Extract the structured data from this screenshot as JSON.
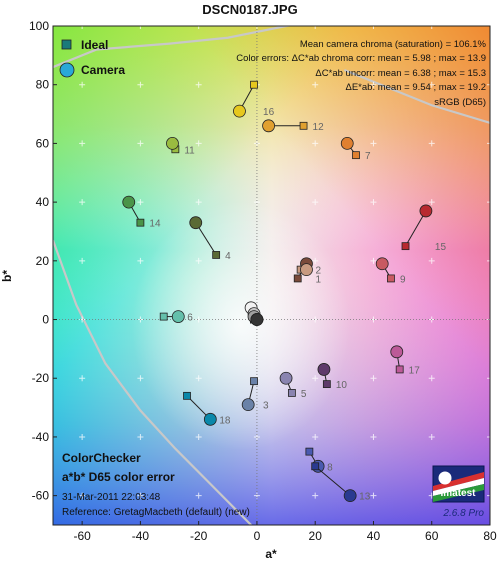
{
  "title": "DSCN0187.JPG",
  "chart_data": {
    "type": "scatter",
    "title": "DSCN0187.JPG",
    "xlabel": "a*",
    "ylabel": "b*",
    "xlim": [
      -70,
      80
    ],
    "ylim": [
      -70,
      100
    ],
    "xticks": [
      -60,
      -40,
      -20,
      0,
      20,
      40,
      60,
      80
    ],
    "yticks": [
      -60,
      -40,
      -20,
      0,
      20,
      40,
      60,
      80,
      100
    ],
    "grid": true,
    "legend": {
      "placement": "top-left",
      "ideal": "Ideal",
      "camera": "Camera"
    },
    "stats": [
      "Mean camera chroma (saturation) = 106.1%",
      "Color errors:  ΔC*ab chroma corr:  mean = 5.98 ;  max = 13.9",
      "ΔC*ab uncorr:  mean = 6.38 ;  max = 15.3",
      "ΔE*ab:  mean = 9.54 ;  max = 19.2",
      "sRGB (D65)"
    ],
    "info": [
      "ColorChecker",
      "a*b* D65 color error",
      "31-Mar-2011 22:03:48",
      "Reference: GretagMacbeth (default) (new)"
    ],
    "logo_text": "Imatest",
    "version": "2.6.8  Pro",
    "patches": [
      {
        "label": "1",
        "ideal": [
          14,
          14
        ],
        "camera": [
          17,
          19
        ],
        "color": "#7a4a3a"
      },
      {
        "label": "2",
        "ideal": [
          15,
          17
        ],
        "camera": [
          17,
          17
        ],
        "color": "#c89a80"
      },
      {
        "label": "3",
        "ideal": [
          -1,
          -21
        ],
        "camera": [
          -3,
          -29
        ],
        "color": "#6a82a8"
      },
      {
        "label": "4",
        "ideal": [
          -14,
          22
        ],
        "camera": [
          -21,
          33
        ],
        "color": "#5a6a35"
      },
      {
        "label": "5",
        "ideal": [
          12,
          -25
        ],
        "camera": [
          10,
          -20
        ],
        "color": "#8a84b0"
      },
      {
        "label": "6",
        "ideal": [
          -32,
          1
        ],
        "camera": [
          -27,
          1
        ],
        "color": "#64c0ab"
      },
      {
        "label": "7",
        "ideal": [
          34,
          56
        ],
        "camera": [
          31,
          60
        ],
        "color": "#e08030"
      },
      {
        "label": "8",
        "ideal": [
          18,
          -45
        ],
        "camera": [
          21,
          -50
        ],
        "color": "#4a5ab0"
      },
      {
        "label": "9",
        "ideal": [
          46,
          14
        ],
        "camera": [
          43,
          19
        ],
        "color": "#c85a62"
      },
      {
        "label": "10",
        "ideal": [
          24,
          -22
        ],
        "camera": [
          23,
          -17
        ],
        "color": "#5e3a6a"
      },
      {
        "label": "11",
        "ideal": [
          -28,
          58
        ],
        "camera": [
          -29,
          60
        ],
        "color": "#9abc40"
      },
      {
        "label": "12",
        "ideal": [
          16,
          66
        ],
        "camera": [
          4,
          66
        ],
        "color": "#e0a030"
      },
      {
        "label": "13",
        "ideal": [
          20,
          -50
        ],
        "camera": [
          32,
          -60
        ],
        "color": "#2a3a90"
      },
      {
        "label": "14",
        "ideal": [
          -40,
          33
        ],
        "camera": [
          -44,
          40
        ],
        "color": "#4a9448"
      },
      {
        "label": "15",
        "ideal": [
          51,
          25
        ],
        "camera": [
          58,
          37
        ],
        "color": "#b82a30"
      },
      {
        "label": "16",
        "ideal": [
          -1,
          80
        ],
        "camera": [
          -6,
          71
        ],
        "color": "#e6c81e"
      },
      {
        "label": "17",
        "ideal": [
          49,
          -17
        ],
        "camera": [
          48,
          -11
        ],
        "color": "#bc5a98"
      },
      {
        "label": "18",
        "ideal": [
          -24,
          -26
        ],
        "camera": [
          -16,
          -34
        ],
        "color": "#0a88aa"
      },
      {
        "label": "",
        "ideal": [
          -1,
          0
        ],
        "camera": [
          -2,
          4
        ],
        "color": "#f2f2f2"
      },
      {
        "label": "",
        "ideal": [
          -1,
          0
        ],
        "camera": [
          -1,
          2
        ],
        "color": "#c8c8c8"
      },
      {
        "label": "",
        "ideal": [
          -1,
          0
        ],
        "camera": [
          -1,
          1
        ],
        "color": "#a0a0a0"
      },
      {
        "label": "",
        "ideal": [
          0,
          0
        ],
        "camera": [
          0,
          0
        ],
        "color": "#7a7a7a"
      },
      {
        "label": "",
        "ideal": [
          0,
          0
        ],
        "camera": [
          0,
          0
        ],
        "color": "#555555"
      },
      {
        "label": "",
        "ideal": [
          0,
          0
        ],
        "camera": [
          0,
          0
        ],
        "color": "#343434"
      }
    ]
  }
}
